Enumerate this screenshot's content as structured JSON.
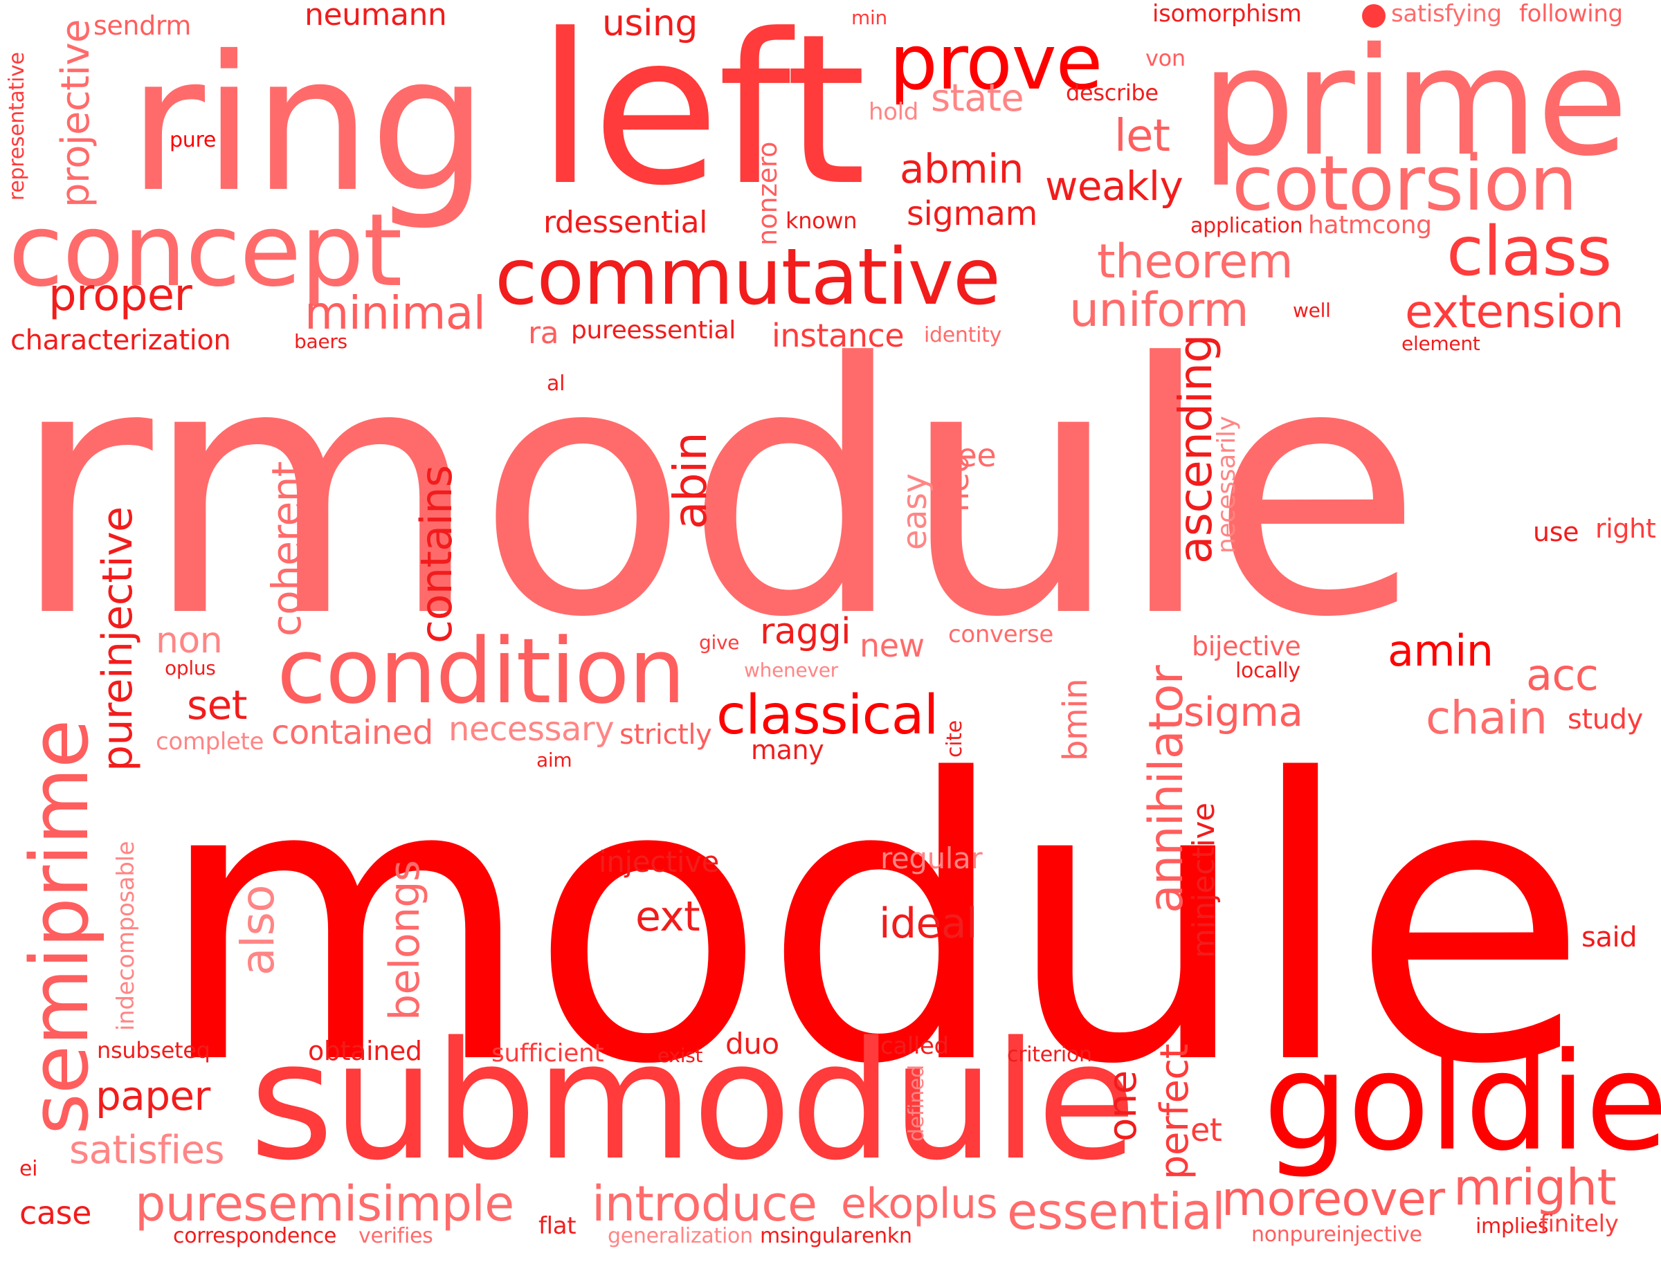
{
  "words": [
    {
      "text": "module"
    },
    {
      "text": "rmodule"
    },
    {
      "text": "submodule"
    },
    {
      "text": "ring"
    },
    {
      "text": "left"
    },
    {
      "text": "prime"
    },
    {
      "text": "goldie"
    },
    {
      "text": "concept"
    },
    {
      "text": "commutative"
    },
    {
      "text": "condition"
    },
    {
      "text": "cotorsion"
    },
    {
      "text": "prove"
    },
    {
      "text": "semiprime"
    },
    {
      "text": "class"
    },
    {
      "text": "classical"
    },
    {
      "text": "introduce"
    },
    {
      "text": "puresemisimple"
    },
    {
      "text": "essential"
    },
    {
      "text": "moreover"
    },
    {
      "text": "mright"
    },
    {
      "text": "ekoplus"
    },
    {
      "text": "uniform"
    },
    {
      "text": "theorem"
    },
    {
      "text": "extension"
    },
    {
      "text": "instance"
    },
    {
      "text": "minimal"
    },
    {
      "text": "proper"
    },
    {
      "text": "characterization"
    },
    {
      "text": "projective"
    },
    {
      "text": "representative"
    },
    {
      "text": "sendrm"
    },
    {
      "text": "neumann"
    },
    {
      "text": "using"
    },
    {
      "text": "min"
    },
    {
      "text": "isomorphism"
    },
    {
      "text": "satisfying"
    },
    {
      "text": "following"
    },
    {
      "text": "von"
    },
    {
      "text": "describe"
    },
    {
      "text": "state"
    },
    {
      "text": "hold"
    },
    {
      "text": "abmin"
    },
    {
      "text": "let"
    },
    {
      "text": "weakly"
    },
    {
      "text": "sigmam"
    },
    {
      "text": "known"
    },
    {
      "text": "nonzero"
    },
    {
      "text": "rdessential"
    },
    {
      "text": "pure"
    },
    {
      "text": "application"
    },
    {
      "text": "hatmcong"
    },
    {
      "text": "well"
    },
    {
      "text": "element"
    },
    {
      "text": "identity"
    },
    {
      "text": "ra"
    },
    {
      "text": "pureessential"
    },
    {
      "text": "baers"
    },
    {
      "text": "al"
    },
    {
      "text": "ascending"
    },
    {
      "text": "necessarily"
    },
    {
      "text": "see"
    },
    {
      "text": "neq"
    },
    {
      "text": "easy"
    },
    {
      "text": "abin"
    },
    {
      "text": "contains"
    },
    {
      "text": "coherent"
    },
    {
      "text": "pureinjective"
    },
    {
      "text": "use"
    },
    {
      "text": "right"
    },
    {
      "text": "non"
    },
    {
      "text": "oplus"
    },
    {
      "text": "set"
    },
    {
      "text": "complete"
    },
    {
      "text": "contained"
    },
    {
      "text": "necessary"
    },
    {
      "text": "aim"
    },
    {
      "text": "strictly"
    },
    {
      "text": "give"
    },
    {
      "text": "raggi"
    },
    {
      "text": "new"
    },
    {
      "text": "whenever"
    },
    {
      "text": "converse"
    },
    {
      "text": "many"
    },
    {
      "text": "cite"
    },
    {
      "text": "bmin"
    },
    {
      "text": "annihilator"
    },
    {
      "text": "bijective"
    },
    {
      "text": "locally"
    },
    {
      "text": "amin"
    },
    {
      "text": "acc"
    },
    {
      "text": "sigma"
    },
    {
      "text": "chain"
    },
    {
      "text": "study"
    },
    {
      "text": "minjective"
    },
    {
      "text": "regular"
    },
    {
      "text": "injective"
    },
    {
      "text": "ext"
    },
    {
      "text": "ideal"
    },
    {
      "text": "said"
    },
    {
      "text": "also"
    },
    {
      "text": "belongs"
    },
    {
      "text": "indecomposable"
    },
    {
      "text": "nsubseteq"
    },
    {
      "text": "obtained"
    },
    {
      "text": "sufficient"
    },
    {
      "text": "exist"
    },
    {
      "text": "duo"
    },
    {
      "text": "called"
    },
    {
      "text": "criterion"
    },
    {
      "text": "defined"
    },
    {
      "text": "one"
    },
    {
      "text": "perfect"
    },
    {
      "text": "et"
    },
    {
      "text": "paper"
    },
    {
      "text": "satisfies"
    },
    {
      "text": "ei"
    },
    {
      "text": "case"
    },
    {
      "text": "correspondence"
    },
    {
      "text": "verifies"
    },
    {
      "text": "flat"
    },
    {
      "text": "generalization"
    },
    {
      "text": "msingular"
    },
    {
      "text": "enkn"
    },
    {
      "text": "nonpureinjective"
    },
    {
      "text": "implies"
    },
    {
      "text": "finitely"
    }
  ],
  "colors": {
    "background": "#ffffff",
    "c1": "#ff0000",
    "c2": "#f21c1c",
    "c3": "#ff3b3b",
    "c4": "#ff5e5e",
    "c5": "#ff6b6b",
    "c6": "#ff8585"
  },
  "dot_color": "#ff3b3b"
}
